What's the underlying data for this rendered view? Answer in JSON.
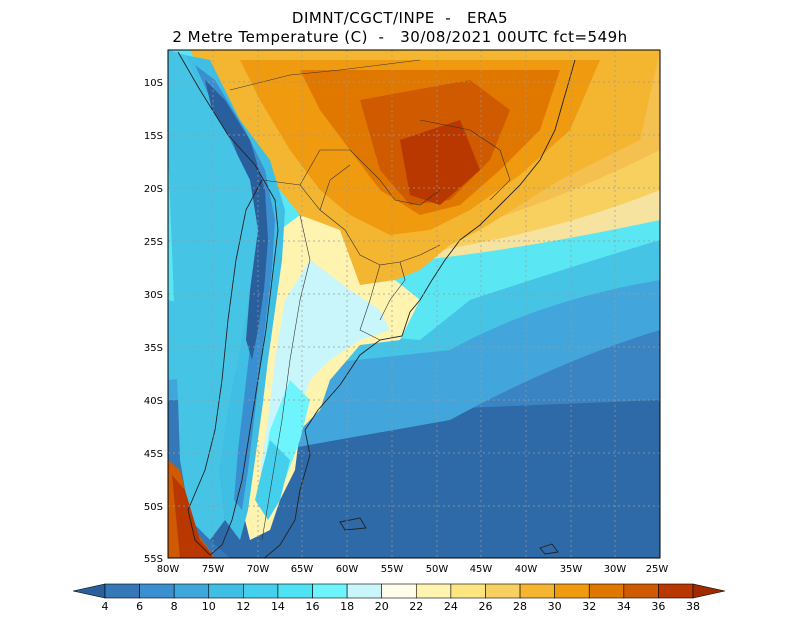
{
  "title": {
    "line1": "DIMNT/CGCT/INPE  -   ERA5",
    "line2": "2 Metre Temperature (C)  -   30/08/2021 00UTC fct=549h"
  },
  "axes": {
    "lat_labels": [
      "10S",
      "15S",
      "20S",
      "25S",
      "30S",
      "35S",
      "40S",
      "45S",
      "50S",
      "55S"
    ],
    "lon_labels": [
      "80W",
      "75W",
      "70W",
      "65W",
      "60W",
      "55W",
      "50W",
      "45W",
      "40W",
      "35W",
      "30W",
      "25W"
    ]
  },
  "colorbar": {
    "labels": [
      "4",
      "6",
      "8",
      "10",
      "12",
      "14",
      "16",
      "18",
      "20",
      "22",
      "24",
      "26",
      "28",
      "30",
      "32",
      "34",
      "36",
      "38"
    ],
    "colors": [
      "#2a5f9e",
      "#3478b8",
      "#3a8fd0",
      "#3ea8dc",
      "#40bfe4",
      "#44d0ec",
      "#4ee2f4",
      "#6ef4fc",
      "#c8f6fa",
      "#fffcea",
      "#fff3b0",
      "#fde680",
      "#f8d060",
      "#f4b530",
      "#f09a10",
      "#e07800",
      "#d05a00",
      "#b83800",
      "#a02a00"
    ]
  }
}
